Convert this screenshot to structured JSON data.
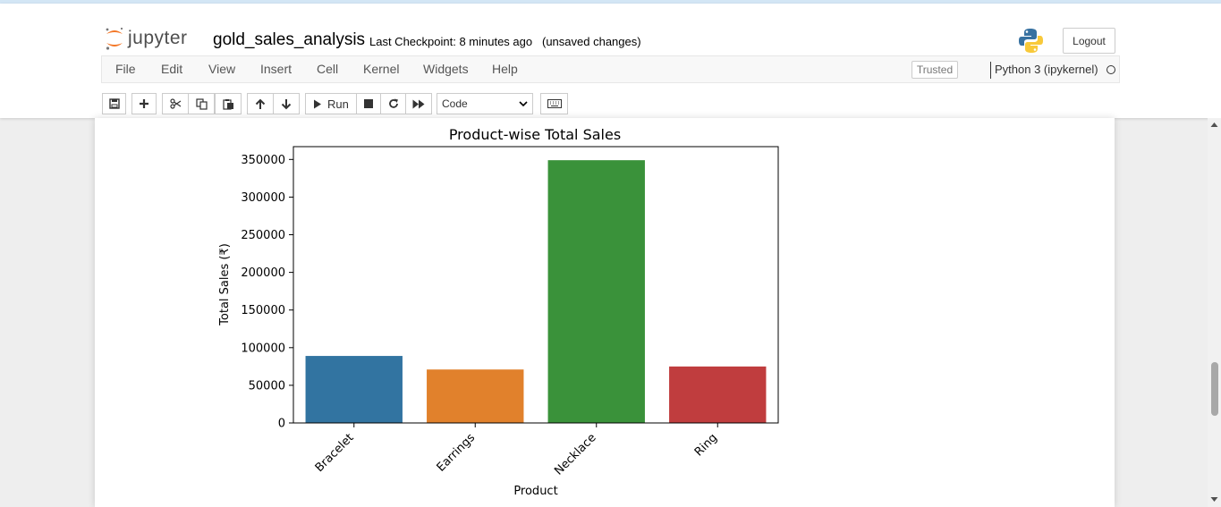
{
  "header": {
    "logo_text": "jupyter",
    "notebook_title": "gold_sales_analysis",
    "checkpoint": "Last Checkpoint: 8 minutes ago",
    "autosave_status": "(unsaved changes)",
    "logout_label": "Logout"
  },
  "menubar": {
    "items": [
      "File",
      "Edit",
      "View",
      "Insert",
      "Cell",
      "Kernel",
      "Widgets",
      "Help"
    ],
    "trusted_label": "Trusted",
    "kernel_name": "Python 3 (ipykernel)"
  },
  "toolbar": {
    "run_label": "Run",
    "cell_type": "Code",
    "cell_type_options": [
      "Code"
    ]
  },
  "icons": {
    "save": "save-icon",
    "add": "plus-icon",
    "cut": "scissors-icon",
    "copy": "copy-icon",
    "paste": "paste-icon",
    "move_up": "arrow-up-icon",
    "move_down": "arrow-down-icon",
    "run": "play-icon",
    "interrupt": "stop-icon",
    "restart": "restart-icon",
    "restart_run_all": "fast-forward-icon",
    "command_palette": "keyboard-icon",
    "kernel_status": "kernel-idle-icon"
  },
  "colors": {
    "jupyter_orange": "#f37626",
    "bar_blue": "#3274a1",
    "bar_orange": "#e1812c",
    "bar_green": "#3a923a",
    "bar_red": "#c03d3e"
  },
  "chart_data": {
    "type": "bar",
    "title": "Product-wise Total Sales",
    "xlabel": "Product",
    "ylabel": "Total Sales (₹)",
    "categories": [
      "Bracelet",
      "Earrings",
      "Necklace",
      "Ring"
    ],
    "values": [
      89000,
      71000,
      349000,
      75000
    ],
    "colors": [
      "#3274a1",
      "#e1812c",
      "#3a923a",
      "#c03d3e"
    ],
    "ylim": [
      0,
      367000
    ],
    "yticks": [
      0,
      50000,
      100000,
      150000,
      200000,
      250000,
      300000,
      350000
    ],
    "grid": false,
    "legend": false
  }
}
